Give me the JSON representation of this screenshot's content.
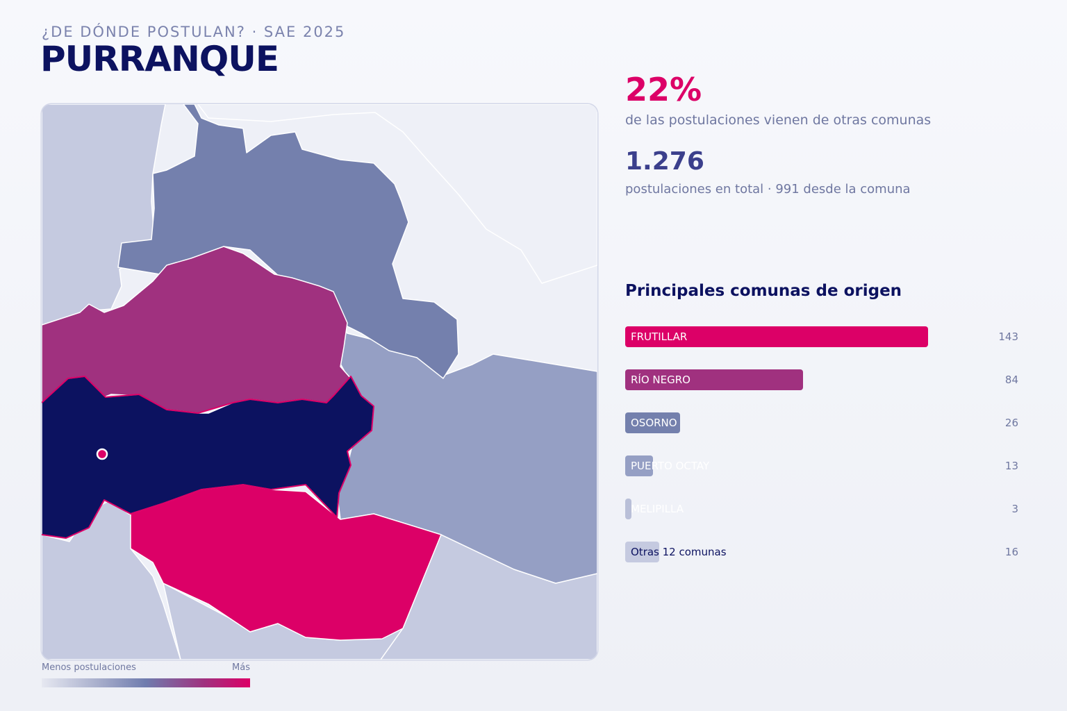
{
  "header": {
    "kicker": "¿DE DÓNDE POSTULAN? · SAE 2025",
    "title": "PURRANQUE"
  },
  "stats": {
    "pct_value": "22%",
    "pct_caption": "de las postulaciones vienen de otras comunas",
    "total_value": "1.276",
    "total_caption": "postulaciones en total · 991 desde la comuna"
  },
  "origins": {
    "title": "Principales comunas de origen",
    "max_value": 143,
    "items": [
      {
        "name": "FRUTILLAR",
        "value": 143,
        "value_label": "143",
        "color": "#dc0067",
        "label_color": "#ffffff"
      },
      {
        "name": "RÍO NEGRO",
        "value": 84,
        "value_label": "84",
        "color": "#a0317f",
        "label_color": "#ffffff"
      },
      {
        "name": "OSORNO",
        "value": 26,
        "value_label": "26",
        "color": "#7480ad",
        "label_color": "#ffffff"
      },
      {
        "name": "PUERTO OCTAY",
        "value": 13,
        "value_label": "13",
        "color": "#959fc4",
        "label_color": "#ffffff"
      },
      {
        "name": "MELIPILLA",
        "value": 3,
        "value_label": "3",
        "color": "#b9bfd8",
        "label_color": "#ffffff"
      },
      {
        "name": "Otras 12 comunas",
        "value": 16,
        "value_label": "16",
        "color": "#c5cae0",
        "label_color": "#0c1260"
      }
    ]
  },
  "legend": {
    "low_label": "Menos postulaciones",
    "high_label": "Más"
  },
  "map_colors": {
    "home": "#0c1260",
    "frutillar": "#dc0067",
    "rio_negro": "#a0317f",
    "osorno": "#7480ad",
    "puerto_octay": "#959fc4",
    "low": "#c5cae0",
    "none": "#eef0f7",
    "location_dot": "#dc0067"
  }
}
